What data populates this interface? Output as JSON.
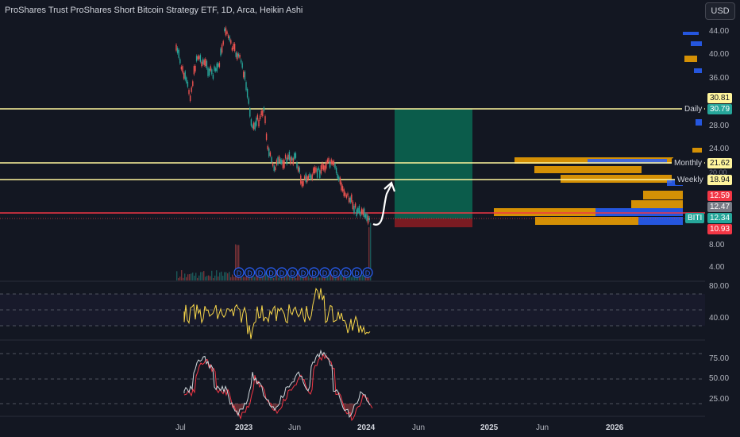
{
  "header": {
    "title": "ProShares Trust ProShares Short Bitcoin Strategy ETF, 1D, Arca, Heikin Ashi",
    "currency_button": "USD"
  },
  "price_axis": {
    "labels": [
      "44.00",
      "40.00",
      "36.00",
      "28.00",
      "24.00",
      "8.00",
      "4.00"
    ]
  },
  "price_tags": {
    "top_red": "30.81",
    "daily": "30.79",
    "monthly": "21.62",
    "weekly": "18.94",
    "red2": "12.59",
    "gray": "12.47",
    "biti": "12.34",
    "last": "10.93",
    "partial_20": "20.00"
  },
  "line_labels": {
    "daily": "Daily",
    "monthly": "Monthly",
    "weekly": "Weekly",
    "symbol": "BITI"
  },
  "dividend_marker": "D",
  "rsi_axis": {
    "labels": [
      "80.00",
      "40.00"
    ]
  },
  "stoch_axis": {
    "labels": [
      "75.00",
      "50.00",
      "25.00"
    ]
  },
  "time_axis": {
    "labels": [
      {
        "text": "Jul",
        "bold": false
      },
      {
        "text": "2023",
        "bold": true
      },
      {
        "text": "Jun",
        "bold": false
      },
      {
        "text": "2024",
        "bold": true
      },
      {
        "text": "Jun",
        "bold": false
      },
      {
        "text": "2025",
        "bold": true
      },
      {
        "text": "Jun",
        "bold": false
      },
      {
        "text": "2026",
        "bold": true
      }
    ]
  },
  "colors": {
    "background": "#131722",
    "up": "#26a69a",
    "down": "#ef5350",
    "level_line": "#fff59d",
    "red_line": "#f23645",
    "profit_zone": "#0b5c4b",
    "loss_zone": "#7a1b22",
    "vp_blue": "#2962ff",
    "vp_orange": "#f7a600",
    "rsi": "#f7d64a",
    "stoch_k": "#cfd8dc",
    "stoch_d": "#f23645"
  }
}
